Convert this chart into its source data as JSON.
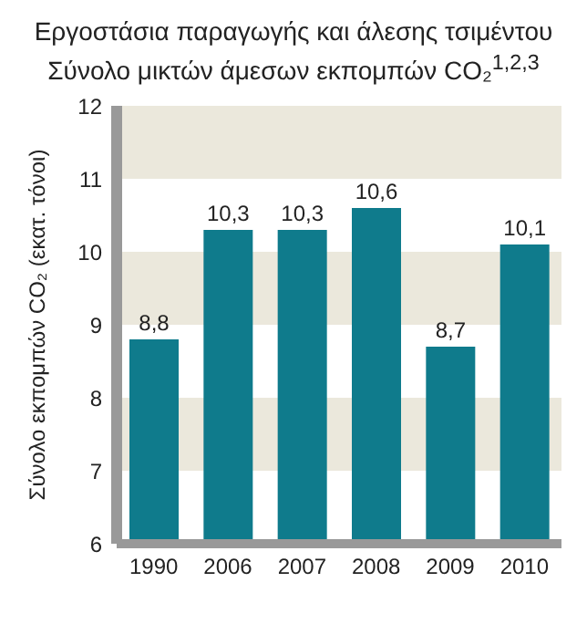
{
  "chart_data": {
    "type": "bar",
    "title": "Εργοστάσια παραγωγής και άλεσης τσιμέντου",
    "subtitle": "Σύνολο μικτών άμεσων εκπομπών CO₂$^{1,2,3}$",
    "ylabel": "Σύνολο εκπομπών CO₂ (εκατ. τόνοι)",
    "categories": [
      "1990",
      "2006",
      "2007",
      "2008",
      "2009",
      "2010"
    ],
    "values": [
      8.8,
      10.3,
      10.3,
      10.6,
      8.7,
      10.1
    ],
    "value_labels": [
      "8,8",
      "10,3",
      "10,3",
      "10,6",
      "8,7",
      "10,1"
    ],
    "color": "#0f7b8c",
    "ylim": [
      6,
      12
    ],
    "yticks": [
      6,
      7,
      8,
      9,
      10,
      11,
      12
    ],
    "grid": false,
    "bands": [
      {
        "axis": "y",
        "from": 7,
        "to": 8,
        "color": "#ebe8dc"
      },
      {
        "axis": "y",
        "from": 9,
        "to": 10,
        "color": "#ebe8dc"
      },
      {
        "axis": "y",
        "from": 11,
        "to": 12,
        "color": "#ebe8dc"
      }
    ]
  }
}
